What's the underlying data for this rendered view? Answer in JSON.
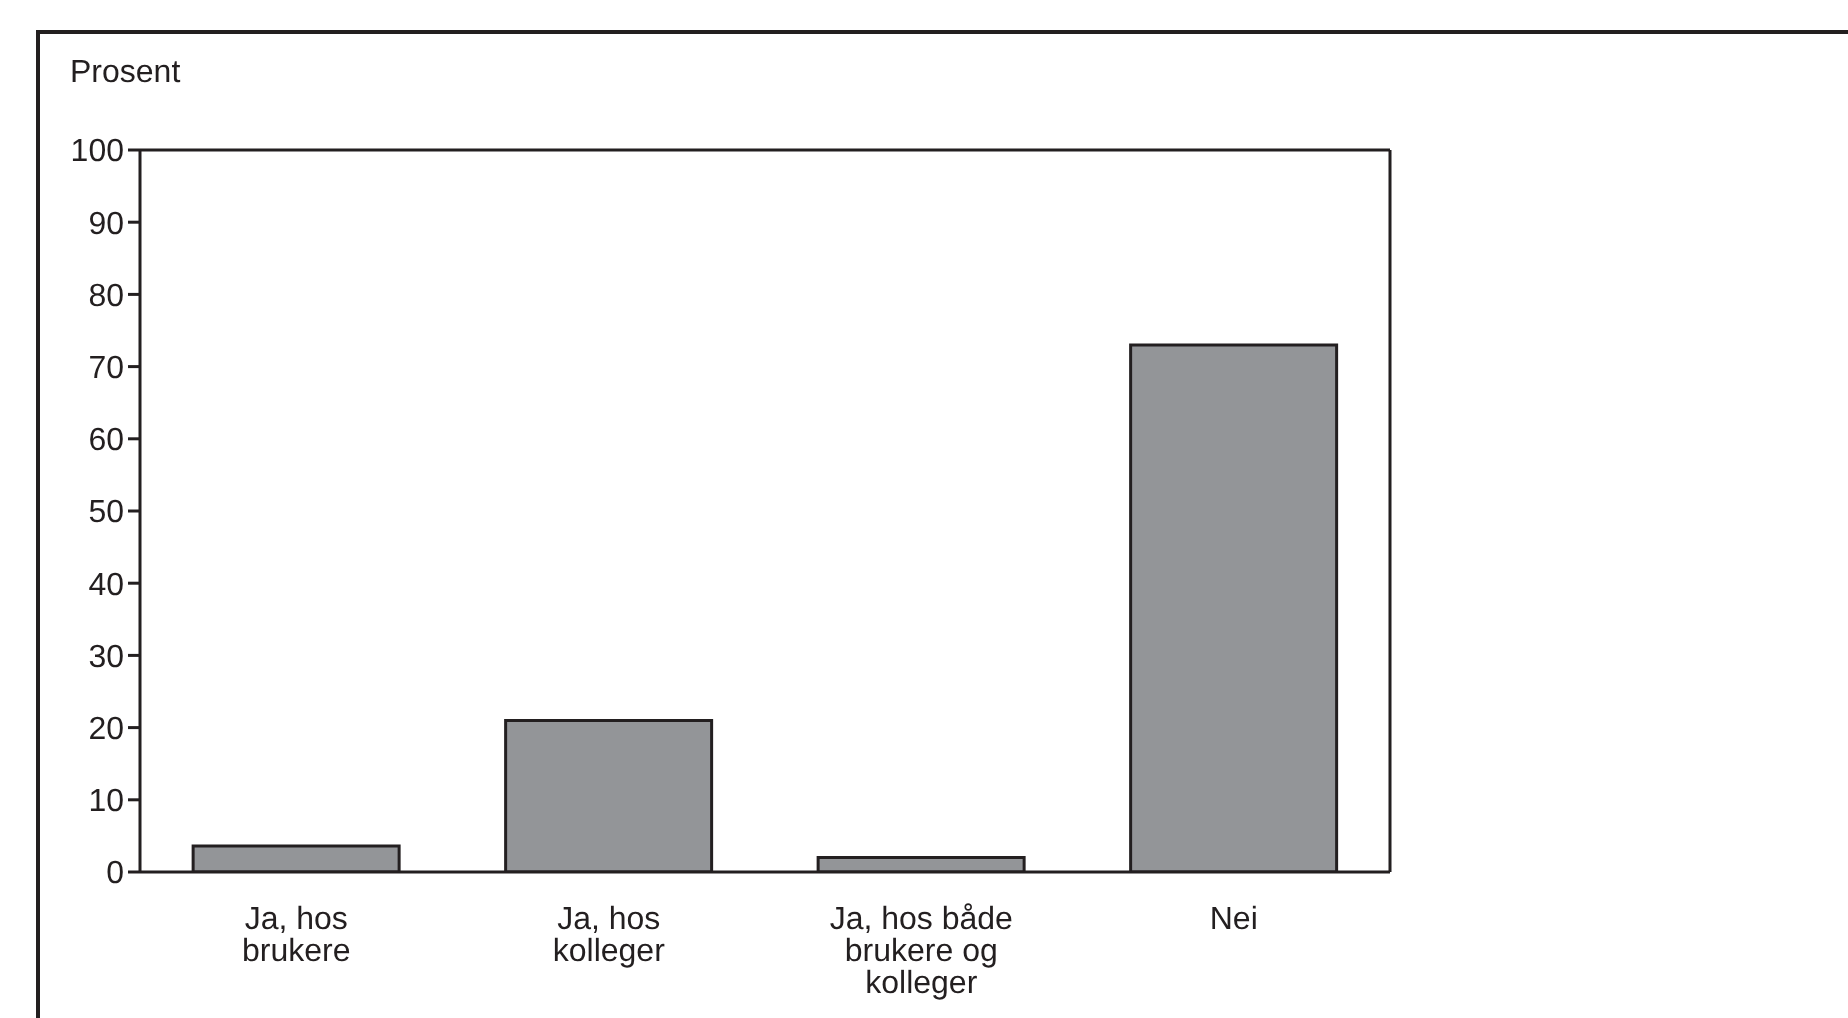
{
  "chart_data": {
    "type": "bar",
    "ylabel": "Prosent",
    "categories": [
      "Ja, hos brukere",
      "Ja, hos kolleger",
      "Ja, hos både brukere og kolleger",
      "Nei"
    ],
    "values": [
      3.6,
      21,
      2,
      73
    ],
    "color": "#939598",
    "ylim": [
      0,
      100
    ],
    "yticks": [
      0,
      10,
      20,
      30,
      40,
      50,
      60,
      70,
      80,
      90,
      100
    ],
    "grid": false,
    "legend": false
  }
}
